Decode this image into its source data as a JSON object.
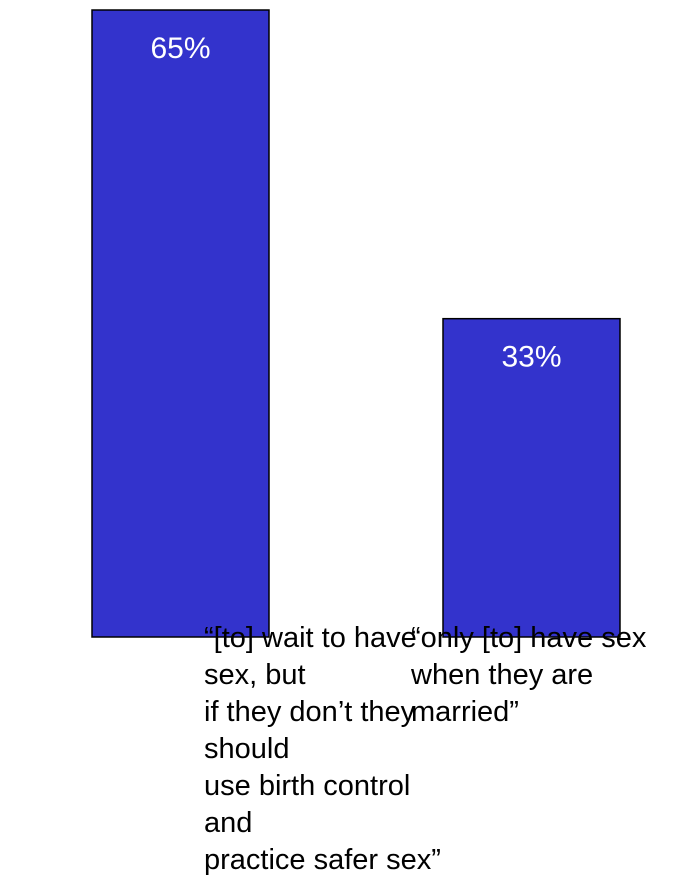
{
  "chart_data": {
    "type": "bar",
    "categories": [
      "“[to] wait to have sex, but\nif they don’t they should\nuse birth control and\npractice safer sex”",
      "“only [to] have sex\nwhen they are\nmarried”"
    ],
    "values": [
      65,
      33
    ],
    "value_labels": [
      "65%",
      "33%"
    ],
    "title": "",
    "xlabel": "",
    "ylabel": "",
    "ylim": [
      0,
      65
    ],
    "grid": false,
    "legend": "none",
    "colors": {
      "bar_fill": "#3333cc",
      "bar_stroke": "#000000",
      "label_text": "#ffffff"
    }
  }
}
